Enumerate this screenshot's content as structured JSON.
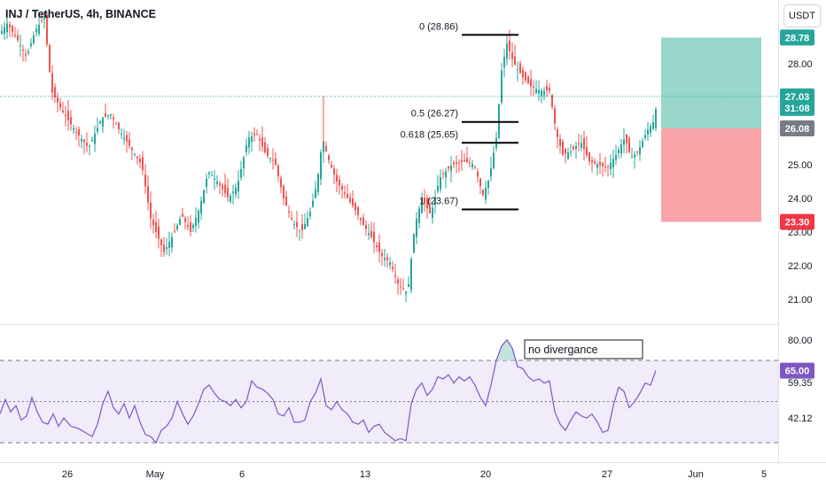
{
  "header": {
    "symbol_title": "INJ / TetherUS, 4h, BINANCE",
    "currency": "USDT"
  },
  "colors": {
    "up": "#26a69a",
    "down": "#ef5350",
    "rsi_line": "#7e57c2",
    "rsi_band": "#f0ecfa",
    "target_zone": "#98d7c9",
    "stop_zone": "#f8a3a8"
  },
  "chart_data": [
    {
      "type": "candlestick",
      "ylim": [
        20.5,
        30.3
      ],
      "x_tick_labels": [
        "26",
        "May",
        "6",
        "13",
        "20",
        "27",
        "Jun",
        "5"
      ],
      "y_tick_labels": [
        "28.00",
        "27.00",
        "26.00",
        "25.00",
        "24.00",
        "23.00",
        "22.00",
        "21.00"
      ],
      "current_price": "27.03",
      "countdown": "31:08",
      "price_labels": [
        {
          "text": "28.78",
          "kind": "target"
        },
        {
          "text": "27.03",
          "kind": "current"
        },
        {
          "text": "31:08",
          "kind": "countdown"
        },
        {
          "text": "26.08",
          "kind": "entry"
        },
        {
          "text": "23.30",
          "kind": "stop"
        }
      ],
      "fibonacci_levels": [
        {
          "label": "0 (28.86)",
          "value": 28.86
        },
        {
          "label": "0.5 (26.27)",
          "value": 26.27
        },
        {
          "label": "0.618 (25.65)",
          "value": 25.65
        },
        {
          "label": "1 (23.67)",
          "value": 23.67
        }
      ],
      "position": {
        "target": 28.78,
        "entry": 26.08,
        "stop": 23.3
      },
      "price_path": [
        [
          0,
          28.9
        ],
        [
          8,
          29.2
        ],
        [
          20,
          28.7
        ],
        [
          30,
          28.2
        ],
        [
          40,
          29.0
        ],
        [
          50,
          29.4
        ],
        [
          58,
          27.2
        ],
        [
          70,
          26.6
        ],
        [
          85,
          26.0
        ],
        [
          100,
          25.5
        ],
        [
          115,
          26.4
        ],
        [
          125,
          26.5
        ],
        [
          135,
          26.0
        ],
        [
          150,
          25.4
        ],
        [
          160,
          25.0
        ],
        [
          170,
          23.4
        ],
        [
          185,
          22.4
        ],
        [
          195,
          22.9
        ],
        [
          205,
          23.5
        ],
        [
          215,
          23.0
        ],
        [
          225,
          23.7
        ],
        [
          235,
          24.8
        ],
        [
          245,
          24.5
        ],
        [
          258,
          24.0
        ],
        [
          268,
          24.4
        ],
        [
          280,
          25.8
        ],
        [
          290,
          25.9
        ],
        [
          300,
          25.3
        ],
        [
          310,
          25.1
        ],
        [
          320,
          24.0
        ],
        [
          330,
          23.3
        ],
        [
          340,
          23.0
        ],
        [
          350,
          23.6
        ],
        [
          358,
          24.5
        ],
        [
          364,
          25.8
        ],
        [
          370,
          25.2
        ],
        [
          380,
          24.5
        ],
        [
          390,
          24.1
        ],
        [
          400,
          23.7
        ],
        [
          410,
          23.2
        ],
        [
          420,
          22.8
        ],
        [
          430,
          22.3
        ],
        [
          440,
          22.1
        ],
        [
          450,
          21.4
        ],
        [
          460,
          21.2
        ],
        [
          468,
          23.2
        ],
        [
          476,
          24.0
        ],
        [
          486,
          23.5
        ],
        [
          496,
          24.6
        ],
        [
          510,
          25.0
        ],
        [
          525,
          25.1
        ],
        [
          535,
          25.0
        ],
        [
          545,
          24.1
        ],
        [
          552,
          24.6
        ],
        [
          560,
          25.8
        ],
        [
          566,
          27.8
        ],
        [
          572,
          28.6
        ],
        [
          580,
          28.0
        ],
        [
          590,
          27.6
        ],
        [
          600,
          27.3
        ],
        [
          610,
          27.2
        ],
        [
          620,
          27.2
        ],
        [
          628,
          25.9
        ],
        [
          635,
          25.3
        ],
        [
          645,
          25.4
        ],
        [
          655,
          25.7
        ],
        [
          665,
          25.1
        ],
        [
          675,
          25.0
        ],
        [
          685,
          24.9
        ],
        [
          695,
          25.3
        ],
        [
          705,
          25.8
        ],
        [
          712,
          25.2
        ],
        [
          720,
          25.4
        ],
        [
          730,
          26.0
        ],
        [
          738,
          26.3
        ],
        [
          742,
          27.0
        ]
      ]
    },
    {
      "type": "line",
      "name": "RSI",
      "ylim": [
        29,
        86
      ],
      "levels": [
        70,
        50,
        30
      ],
      "y_tick_labels": [
        "80.00",
        "65.00",
        "59.35",
        "42.12"
      ],
      "current_value": "65.00",
      "annotation": "no divergance",
      "points": [
        [
          0,
          44
        ],
        [
          6,
          51
        ],
        [
          12,
          45
        ],
        [
          18,
          48
        ],
        [
          24,
          41
        ],
        [
          30,
          43
        ],
        [
          36,
          52
        ],
        [
          42,
          45
        ],
        [
          48,
          40
        ],
        [
          54,
          39
        ],
        [
          60,
          44
        ],
        [
          66,
          38
        ],
        [
          72,
          42
        ],
        [
          80,
          38
        ],
        [
          88,
          37
        ],
        [
          96,
          35
        ],
        [
          104,
          33
        ],
        [
          110,
          39
        ],
        [
          116,
          49
        ],
        [
          122,
          55
        ],
        [
          128,
          47
        ],
        [
          134,
          44
        ],
        [
          140,
          49
        ],
        [
          146,
          42
        ],
        [
          152,
          48
        ],
        [
          158,
          40
        ],
        [
          164,
          34
        ],
        [
          170,
          33
        ],
        [
          176,
          30
        ],
        [
          182,
          36
        ],
        [
          188,
          38
        ],
        [
          194,
          42
        ],
        [
          200,
          50
        ],
        [
          206,
          44
        ],
        [
          212,
          39
        ],
        [
          218,
          43
        ],
        [
          224,
          49
        ],
        [
          230,
          56
        ],
        [
          236,
          58
        ],
        [
          242,
          54
        ],
        [
          248,
          51
        ],
        [
          254,
          50
        ],
        [
          260,
          48
        ],
        [
          266,
          51
        ],
        [
          272,
          47
        ],
        [
          278,
          50
        ],
        [
          284,
          60
        ],
        [
          290,
          57
        ],
        [
          296,
          56
        ],
        [
          302,
          54
        ],
        [
          308,
          51
        ],
        [
          314,
          44
        ],
        [
          320,
          43
        ],
        [
          326,
          47
        ],
        [
          332,
          40
        ],
        [
          338,
          40
        ],
        [
          344,
          41
        ],
        [
          350,
          50
        ],
        [
          356,
          54
        ],
        [
          362,
          61
        ],
        [
          368,
          48
        ],
        [
          374,
          46
        ],
        [
          380,
          50
        ],
        [
          386,
          46
        ],
        [
          392,
          44
        ],
        [
          398,
          40
        ],
        [
          404,
          39
        ],
        [
          410,
          41
        ],
        [
          416,
          35
        ],
        [
          422,
          38
        ],
        [
          428,
          39
        ],
        [
          434,
          35
        ],
        [
          440,
          33
        ],
        [
          446,
          31
        ],
        [
          452,
          32
        ],
        [
          458,
          31
        ],
        [
          464,
          49
        ],
        [
          470,
          56
        ],
        [
          476,
          59
        ],
        [
          482,
          53
        ],
        [
          488,
          56
        ],
        [
          494,
          62
        ],
        [
          500,
          61
        ],
        [
          506,
          63
        ],
        [
          512,
          59
        ],
        [
          518,
          62
        ],
        [
          524,
          60
        ],
        [
          530,
          62
        ],
        [
          536,
          58
        ],
        [
          542,
          52
        ],
        [
          548,
          48
        ],
        [
          554,
          58
        ],
        [
          560,
          70
        ],
        [
          566,
          77
        ],
        [
          572,
          80
        ],
        [
          578,
          76
        ],
        [
          584,
          67
        ],
        [
          590,
          66
        ],
        [
          596,
          62
        ],
        [
          602,
          60
        ],
        [
          608,
          61
        ],
        [
          614,
          59
        ],
        [
          620,
          60
        ],
        [
          626,
          45
        ],
        [
          632,
          39
        ],
        [
          638,
          36
        ],
        [
          644,
          41
        ],
        [
          650,
          45
        ],
        [
          656,
          43
        ],
        [
          662,
          42
        ],
        [
          668,
          44
        ],
        [
          674,
          40
        ],
        [
          680,
          35
        ],
        [
          686,
          36
        ],
        [
          692,
          48
        ],
        [
          698,
          57
        ],
        [
          704,
          55
        ],
        [
          710,
          47
        ],
        [
          716,
          50
        ],
        [
          722,
          54
        ],
        [
          728,
          59
        ],
        [
          734,
          58
        ],
        [
          740,
          65
        ]
      ]
    }
  ]
}
